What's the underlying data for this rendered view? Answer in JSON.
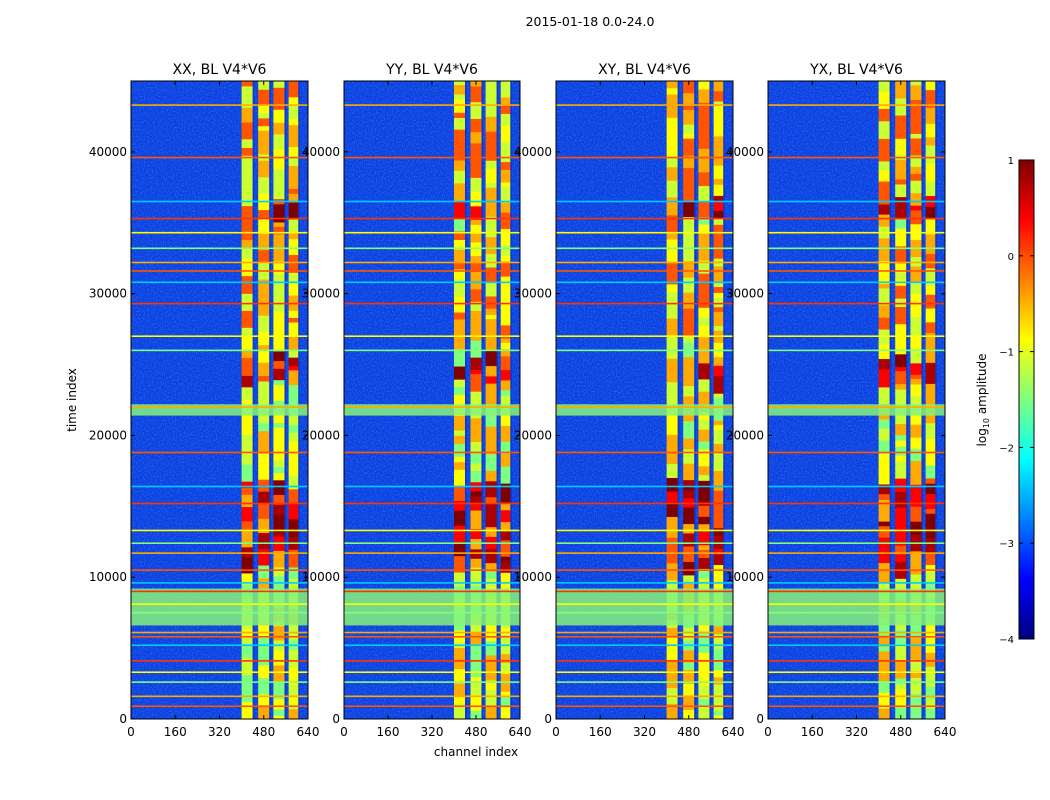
{
  "figure": {
    "suptitle": "2015-01-18 0.0-24.0"
  },
  "chart_data": {
    "type": "heatmap",
    "suptitle": "2015-01-18 0.0-24.0",
    "xlabel": "channel index",
    "ylabel": "time index",
    "xlim": [
      0,
      640
    ],
    "ylim": [
      0,
      45000
    ],
    "x_ticks": [
      0,
      160,
      320,
      480,
      640
    ],
    "y_ticks": [
      0,
      10000,
      20000,
      30000,
      40000
    ],
    "x_tick_labels": [
      "0",
      "160",
      "320",
      "480",
      "640"
    ],
    "y_tick_labels": [
      "0",
      "10000",
      "20000",
      "30000",
      "40000"
    ],
    "colormap": "jet",
    "colorbar": {
      "label_prefix": "log",
      "label_sub": "10",
      "label_suffix": " amplitude",
      "range": [
        -4,
        1
      ],
      "ticks": [
        1,
        0,
        -1,
        -2,
        -3,
        -4
      ],
      "tick_labels": [
        "1",
        "0",
        "−1",
        "−2",
        "−3",
        "−4"
      ]
    },
    "panels": [
      {
        "title": "XX, BL V4*V6",
        "pol": "XX"
      },
      {
        "title": "YY, BL V4*V6",
        "pol": "YY"
      },
      {
        "title": "XY, BL V4*V6",
        "pol": "XY"
      },
      {
        "title": "YX, BL V4*V6",
        "pol": "YX"
      }
    ],
    "signal_channel_bands": [
      [
        400,
        440
      ],
      [
        460,
        500
      ],
      [
        515,
        555
      ],
      [
        570,
        605
      ]
    ],
    "rfi_time_rows": [
      900,
      1600,
      2600,
      3300,
      4100,
      5200,
      5800,
      6100,
      7500,
      8100,
      9000,
      9600,
      10500,
      11700,
      12400,
      13300,
      15200,
      16400,
      18800,
      22000,
      26000,
      27000,
      29300,
      30800,
      31600,
      32200,
      33200,
      34300,
      35300,
      36500,
      39600,
      43300
    ],
    "flagged_time_ranges": [
      [
        6600,
        9200
      ],
      [
        21400,
        22200
      ]
    ]
  }
}
